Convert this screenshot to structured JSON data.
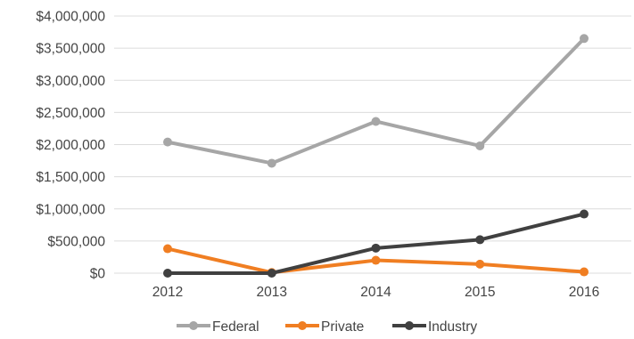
{
  "chart_data": {
    "type": "line",
    "x": [
      "2012",
      "2013",
      "2014",
      "2015",
      "2016"
    ],
    "y_ticks": [
      "$4,000,000",
      "$3,500,000",
      "$3,000,000",
      "$2,500,000",
      "$2,000,000",
      "$1,500,000",
      "$1,000,000",
      "$500,000",
      "$0"
    ],
    "ylim": [
      0,
      4000000
    ],
    "grid": true,
    "legend_position": "bottom",
    "series": [
      {
        "name": "Federal",
        "color": "#a6a6a6",
        "values": [
          2040000,
          1710000,
          2360000,
          1980000,
          3650000
        ]
      },
      {
        "name": "Private",
        "color": "#f07e22",
        "values": [
          380000,
          10000,
          200000,
          140000,
          20000
        ]
      },
      {
        "name": "Industry",
        "color": "#404040",
        "values": [
          0,
          0,
          390000,
          520000,
          920000
        ]
      }
    ]
  }
}
